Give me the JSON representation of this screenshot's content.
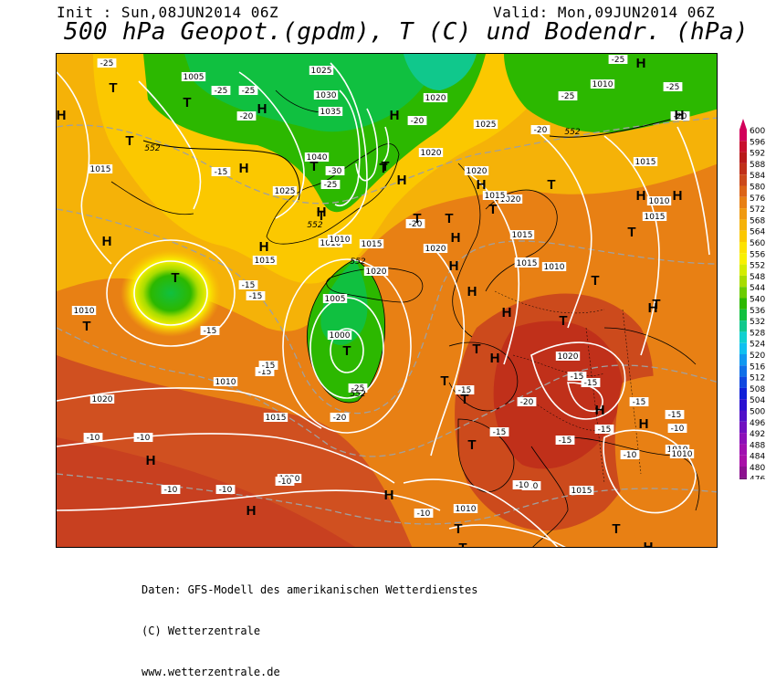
{
  "header": {
    "init": "Init : Sun,08JUN2014 06Z",
    "valid": "Valid: Mon,09JUN2014 06Z",
    "title": "500 hPa Geopot.(gpdm), T (C) und Bodendr. (hPa)"
  },
  "footer": {
    "line1": "Daten: GFS-Modell des amerikanischen Wetterdienstes",
    "line2": "(C) Wetterzentrale",
    "line3": "www.wetterzentrale.de"
  },
  "legend": {
    "levels": [
      "600",
      "596",
      "592",
      "588",
      "584",
      "580",
      "576",
      "572",
      "568",
      "564",
      "560",
      "556",
      "552",
      "548",
      "544",
      "540",
      "536",
      "532",
      "528",
      "524",
      "520",
      "516",
      "512",
      "508",
      "504",
      "500",
      "496",
      "492",
      "488",
      "484",
      "480",
      "476"
    ],
    "colors": [
      "#d2005a",
      "#c8102d",
      "#b81a1a",
      "#c0301a",
      "#cc4a1c",
      "#dc6418",
      "#e88014",
      "#f09a10",
      "#f5b208",
      "#fbc800",
      "#fde200",
      "#f8f000",
      "#d4ec00",
      "#a8dc00",
      "#6ccc00",
      "#2cb800",
      "#10c040",
      "#10c88c",
      "#10d0d0",
      "#10c0f0",
      "#1098f0",
      "#1070e8",
      "#1048e0",
      "#1020d8",
      "#2810d0",
      "#5010c8",
      "#7010c0",
      "#8c10b8",
      "#a010b0",
      "#a810a8",
      "#8c1090",
      "#6c0c70"
    ]
  },
  "map": {
    "isobars": [
      "1005",
      "1000",
      "1005",
      "1010",
      "1010",
      "1015",
      "1015",
      "1020",
      "1020",
      "1025",
      "1030",
      "1035",
      "1040",
      "1025",
      "1020",
      "1015",
      "1010",
      "1015",
      "1020",
      "1020",
      "1025",
      "1020",
      "1015",
      "1010",
      "1015",
      "1010",
      "1015",
      "1020",
      "1020",
      "1015",
      "1010",
      "1010",
      "1015",
      "1020",
      "1010",
      "1010",
      "1015",
      "1015",
      "1020",
      "1010"
    ],
    "temperature_labels": [
      "-25",
      "-25",
      "-20",
      "-25",
      "-30",
      "-25",
      "-20",
      "-20",
      "-25",
      "-20",
      "-25",
      "-15",
      "-20",
      "-15",
      "-15",
      "-15",
      "-15",
      "-15",
      "-20",
      "-25",
      "-15",
      "-20",
      "-15",
      "-15",
      "-10",
      "-10",
      "-10",
      "-10",
      "-15",
      "-15",
      "-10",
      "-10",
      "-10",
      "-10",
      "-10",
      "-15",
      "-15",
      "-15",
      "-25",
      "-10"
    ],
    "heights": [
      "552",
      "552",
      "552",
      "552",
      "552"
    ],
    "highs": "H",
    "lows": "T"
  }
}
